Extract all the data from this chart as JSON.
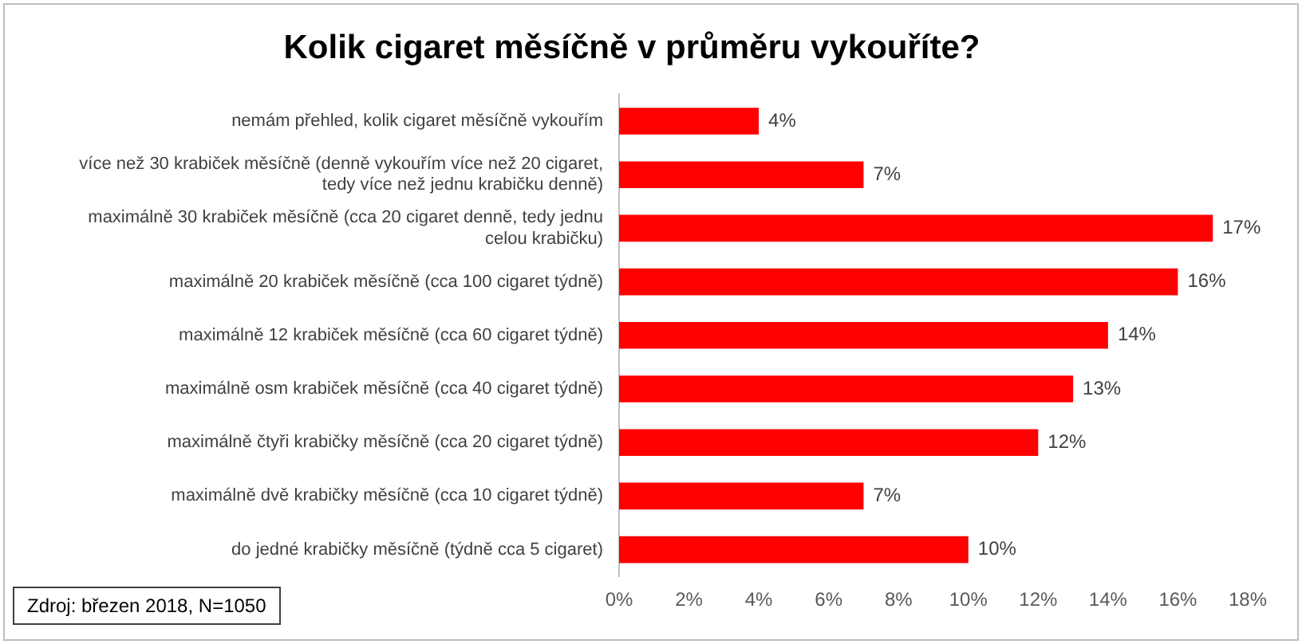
{
  "chart_data": {
    "type": "bar",
    "orientation": "horizontal",
    "title": "Kolik cigaret měsíčně v průměru vykouříte?",
    "categories": [
      "nemám přehled, kolik cigaret měsíčně vykouřím",
      "více než 30 krabiček měsíčně (denně vykouřím více než 20 cigaret, tedy více než jednu krabičku denně)",
      "maximálně 30 krabiček měsíčně (cca 20 cigaret denně, tedy jednu celou krabičku)",
      "maximálně 20 krabiček měsíčně (cca 100 cigaret týdně)",
      "maximálně 12 krabiček měsíčně (cca 60 cigaret týdně)",
      "maximálně osm krabiček měsíčně (cca 40 cigaret týdně)",
      "maximálně čtyři krabičky měsíčně (cca 20 cigaret týdně)",
      "maximálně dvě krabičky měsíčně (cca 10 cigaret týdně)",
      "do jedné krabičky měsíčně (týdně cca 5 cigaret)"
    ],
    "values": [
      4,
      7,
      17,
      16,
      14,
      13,
      12,
      7,
      10
    ],
    "value_labels": [
      "4%",
      "7%",
      "17%",
      "16%",
      "14%",
      "13%",
      "12%",
      "7%",
      "10%"
    ],
    "color": "#ff0000",
    "xlim": [
      0,
      18
    ],
    "xticks": [
      {
        "value": 0,
        "label": "0%"
      },
      {
        "value": 2,
        "label": "2%"
      },
      {
        "value": 4,
        "label": "4%"
      },
      {
        "value": 6,
        "label": "6%"
      },
      {
        "value": 8,
        "label": "8%"
      },
      {
        "value": 10,
        "label": "10%"
      },
      {
        "value": 12,
        "label": "12%"
      },
      {
        "value": 14,
        "label": "14%"
      },
      {
        "value": 16,
        "label": "16%"
      },
      {
        "value": 18,
        "label": "18%"
      }
    ],
    "annotations": [
      "Zdroj: březen 2018, N=1050"
    ]
  }
}
